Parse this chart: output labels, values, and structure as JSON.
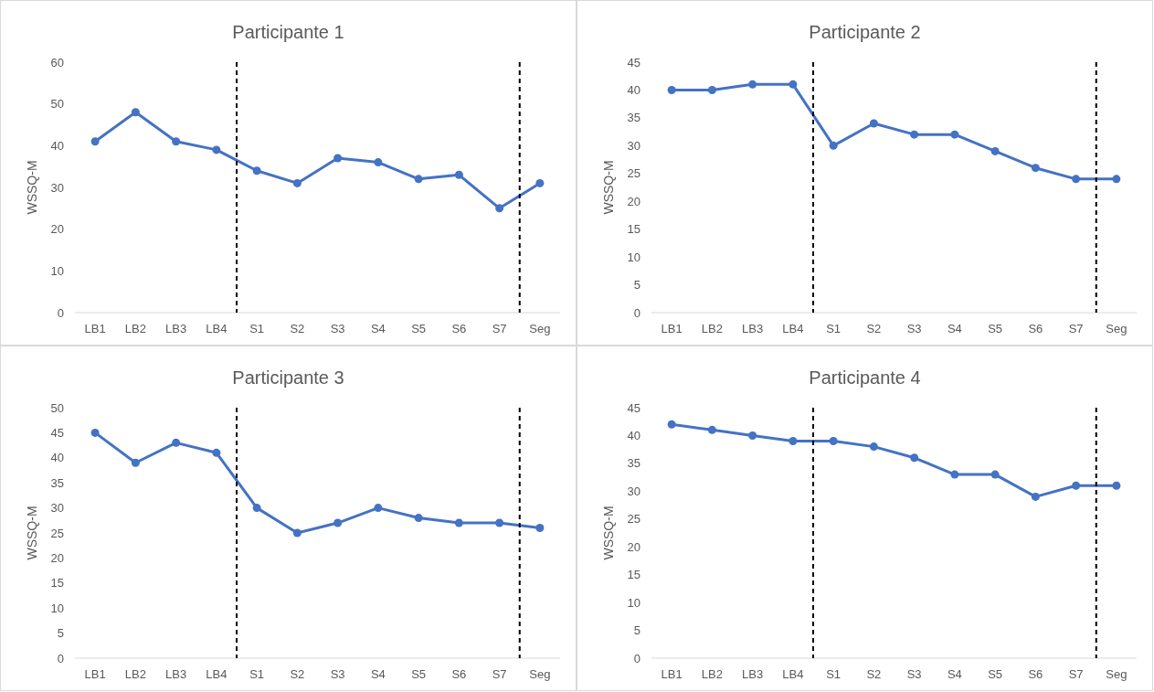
{
  "chart_data": [
    {
      "type": "line",
      "title": "Participante 1",
      "ylabel": "WSSQ-M",
      "categories": [
        "LB1",
        "LB2",
        "LB3",
        "LB4",
        "S1",
        "S2",
        "S3",
        "S4",
        "S5",
        "S6",
        "S7",
        "Seg"
      ],
      "series": [
        {
          "color": "#4472c4",
          "values": [
            41,
            48,
            41,
            39,
            34,
            31,
            37,
            36,
            32,
            33,
            25,
            31
          ]
        }
      ],
      "ylim": [
        0,
        60
      ],
      "yticks": [
        0,
        10,
        20,
        30,
        40,
        50,
        60
      ],
      "marker": "circle",
      "grid": false
    },
    {
      "type": "line",
      "title": "Participante 2",
      "ylabel": "WSSQ-M",
      "categories": [
        "LB1",
        "LB2",
        "LB3",
        "LB4",
        "S1",
        "S2",
        "S3",
        "S4",
        "S5",
        "S6",
        "S7",
        "Seg"
      ],
      "series": [
        {
          "color": "#4472c4",
          "values": [
            40,
            40,
            41,
            41,
            30,
            34,
            32,
            32,
            29,
            26,
            24,
            24
          ]
        }
      ],
      "ylim": [
        0,
        45
      ],
      "yticks": [
        0,
        5,
        10,
        15,
        20,
        25,
        30,
        35,
        40,
        45
      ],
      "marker": "circle",
      "grid": false
    },
    {
      "type": "line",
      "title": "Participante 3",
      "ylabel": "WSSQ-M",
      "categories": [
        "LB1",
        "LB2",
        "LB3",
        "LB4",
        "S1",
        "S2",
        "S3",
        "S4",
        "S5",
        "S6",
        "S7",
        "Seg"
      ],
      "series": [
        {
          "color": "#4472c4",
          "values": [
            45,
            39,
            43,
            41,
            30,
            25,
            27,
            30,
            28,
            27,
            27,
            26
          ]
        }
      ],
      "ylim": [
        0,
        50
      ],
      "yticks": [
        0,
        5,
        10,
        15,
        20,
        25,
        30,
        35,
        40,
        45,
        50
      ],
      "marker": "circle",
      "grid": false
    },
    {
      "type": "line",
      "title": "Participante 4",
      "ylabel": "WSSQ-M",
      "categories": [
        "LB1",
        "LB2",
        "LB3",
        "LB4",
        "S1",
        "S2",
        "S3",
        "S4",
        "S5",
        "S6",
        "S7",
        "Seg"
      ],
      "series": [
        {
          "color": "#4472c4",
          "values": [
            42,
            41,
            40,
            39,
            39,
            38,
            36,
            33,
            33,
            29,
            31,
            31
          ]
        }
      ],
      "ylim": [
        0,
        45
      ],
      "yticks": [
        0,
        5,
        10,
        15,
        20,
        25,
        30,
        35,
        40,
        45
      ],
      "marker": "circle",
      "grid": false
    }
  ]
}
